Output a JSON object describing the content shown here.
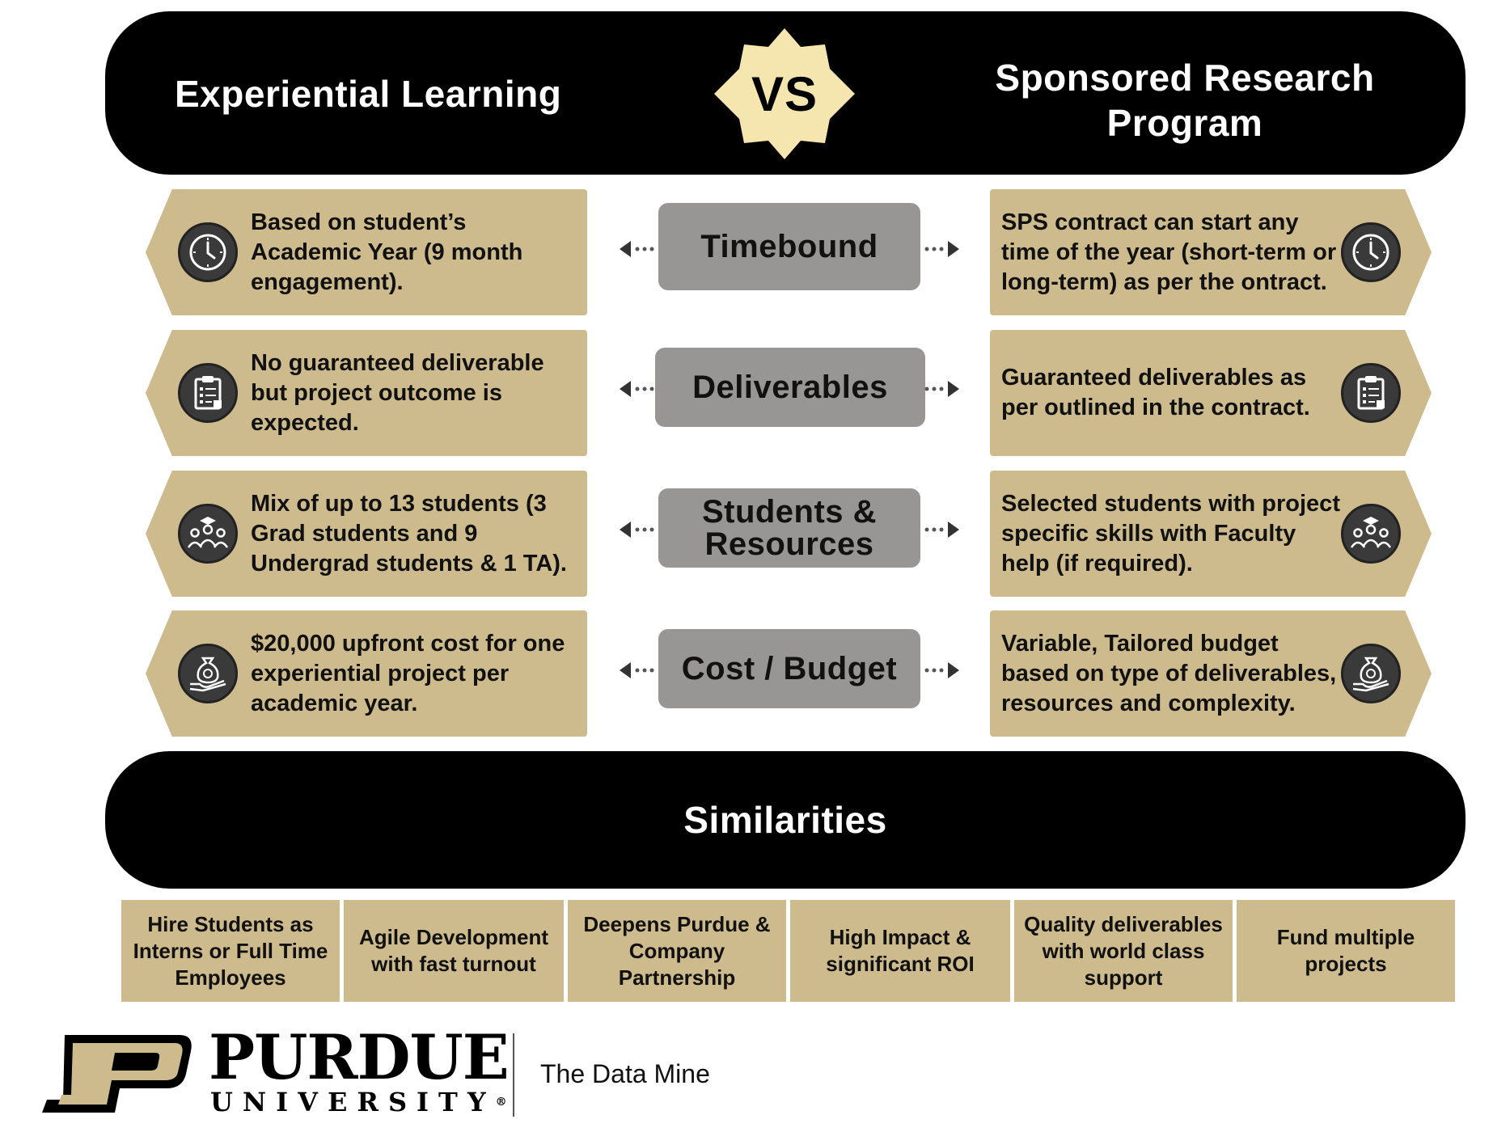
{
  "header": {
    "left_title": "Experiential Learning",
    "vs_label": "VS",
    "right_title": "Sponsored Research Program"
  },
  "rows": [
    {
      "category": "Timebound",
      "left_text": "Based on student’s Academic Year (9 month engagement).",
      "right_text": "SPS contract can start any time of the year (short-term or long-term) as per the ontract.",
      "icon": "clock-icon"
    },
    {
      "category": "Deliverables",
      "left_text": "No guaranteed deliverable but project outcome is expected.",
      "right_text": "Guaranteed deliverables as per outlined in the contract.",
      "icon": "clipboard-icon"
    },
    {
      "category": "Students & Resources",
      "left_text": "Mix of up to 13 students (3 Grad students and 9 Undergrad students & 1 TA).",
      "right_text": "Selected students with project specific skills with Faculty help (if required).",
      "icon": "students-icon"
    },
    {
      "category": "Cost / Budget",
      "left_text": "$20,000 upfront cost for one experiential project per academic year.",
      "right_text": "Variable, Tailored budget based on type of deliverables, resources and complexity.",
      "icon": "money-bag-hand-icon"
    }
  ],
  "similarities": {
    "title": "Similarities",
    "items": [
      "Hire Students as Interns or Full Time Employees",
      "Agile Development with fast turnout",
      "Deepens Purdue & Company Partnership",
      "High Impact & significant ROI",
      "Quality deliverables with world class support",
      "Fund multiple projects"
    ]
  },
  "footer": {
    "logo_letter": "P",
    "university_name": "PURDUE",
    "university_sub": "UNIVERSITY",
    "registered_mark": "®",
    "unit_name": "The Data Mine"
  },
  "colors": {
    "banner": "#000000",
    "gold": "#cdbb8e",
    "badge": "#f5e6b0",
    "pill": "#989595",
    "icon_circle": "#3a3a3a"
  }
}
